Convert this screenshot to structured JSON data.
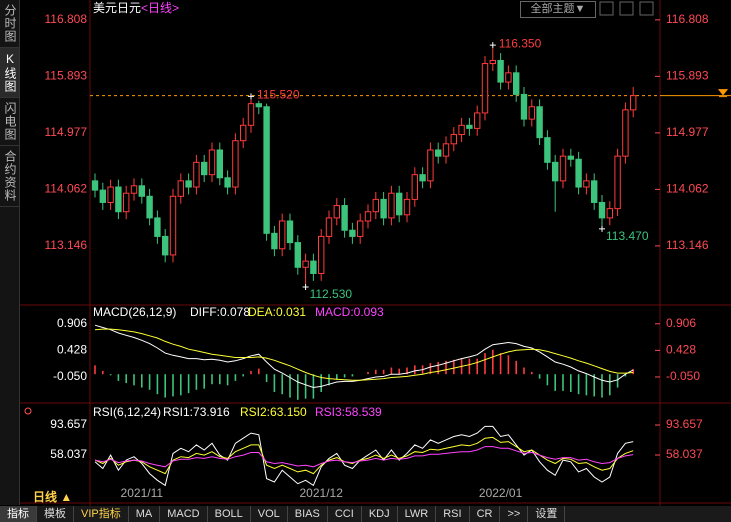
{
  "sidebar": [
    "分时图",
    "K线图",
    "闪电图",
    "合约资料"
  ],
  "theme_button": "全部主题▼",
  "period_tab": "日线 ▲",
  "toolbar": [
    "指标",
    "模板",
    "VIP指标",
    "MA",
    "MACD",
    "BOLL",
    "VOL",
    "BIAS",
    "CCI",
    "KDJ",
    "LWR",
    "RSI",
    "CR",
    ">>",
    "设置"
  ],
  "chart_data": [
    {
      "type": "candlestick",
      "title": "美元日元",
      "subtitle": "<日线>",
      "up_color": "#ff3b3b",
      "down_color": "#3cc47c",
      "last_color": "#ff9900",
      "categories": [
        null,
        null,
        null,
        null,
        null,
        null,
        "2021/11",
        null,
        null,
        null,
        null,
        null,
        null,
        null,
        null,
        null,
        null,
        null,
        null,
        null,
        null,
        null,
        null,
        null,
        null,
        null,
        null,
        null,
        null,
        "2021/12",
        null,
        null,
        null,
        null,
        null,
        null,
        null,
        null,
        null,
        null,
        null,
        null,
        null,
        null,
        null,
        null,
        null,
        null,
        null,
        null,
        null,
        null,
        "2022/01",
        null,
        null,
        null,
        null,
        null,
        null,
        null,
        null,
        null,
        null,
        null,
        null,
        null,
        null,
        null,
        null,
        null
      ],
      "open": [
        114.2,
        114.05,
        113.85,
        114.1,
        113.7,
        114.0,
        114.12,
        113.95,
        113.6,
        113.3,
        113.0,
        113.95,
        114.2,
        114.1,
        114.5,
        114.3,
        114.7,
        114.25,
        114.1,
        114.85,
        115.1,
        115.45,
        115.4,
        113.35,
        113.1,
        113.55,
        113.2,
        112.8,
        112.9,
        112.7,
        113.3,
        113.6,
        113.8,
        113.4,
        113.3,
        113.55,
        113.7,
        113.9,
        113.6,
        114.0,
        113.65,
        113.9,
        114.3,
        114.2,
        114.7,
        114.6,
        114.8,
        114.95,
        115.1,
        115.05,
        115.3,
        116.1,
        116.15,
        115.8,
        115.95,
        115.6,
        115.2,
        115.4,
        114.9,
        114.5,
        114.2,
        114.6,
        114.55,
        114.1,
        114.2,
        113.85,
        113.6,
        113.75,
        114.6,
        115.35
      ],
      "high": [
        114.32,
        114.17,
        114.22,
        114.22,
        114.12,
        114.24,
        114.24,
        114.07,
        113.72,
        113.42,
        114.07,
        114.32,
        114.32,
        114.62,
        114.62,
        114.82,
        114.82,
        114.37,
        114.97,
        115.22,
        115.52,
        115.5,
        115.45,
        113.47,
        113.67,
        113.67,
        113.32,
        113.02,
        113.02,
        113.42,
        113.72,
        113.92,
        113.92,
        113.52,
        113.67,
        113.82,
        114.02,
        114.02,
        114.12,
        114.12,
        114.02,
        114.42,
        114.42,
        114.82,
        114.82,
        114.92,
        115.07,
        115.22,
        115.22,
        115.42,
        116.22,
        116.35,
        116.27,
        116.07,
        116.07,
        115.72,
        115.52,
        115.52,
        115.02,
        114.62,
        114.72,
        114.72,
        114.67,
        114.32,
        114.32,
        113.97,
        113.87,
        114.72,
        115.47,
        115.72
      ],
      "low": [
        113.93,
        113.73,
        113.73,
        113.58,
        113.58,
        113.88,
        113.83,
        113.48,
        113.18,
        112.88,
        112.88,
        113.83,
        113.98,
        113.98,
        114.18,
        114.18,
        114.13,
        113.98,
        113.98,
        114.73,
        114.98,
        115.28,
        113.23,
        112.98,
        112.98,
        113.08,
        112.68,
        112.53,
        112.58,
        112.58,
        113.18,
        113.48,
        113.28,
        113.18,
        113.18,
        113.43,
        113.58,
        113.48,
        113.48,
        113.53,
        113.53,
        113.78,
        114.08,
        114.08,
        114.48,
        114.48,
        114.68,
        114.83,
        114.93,
        114.93,
        115.18,
        115.98,
        115.68,
        115.68,
        115.48,
        115.08,
        115.08,
        114.78,
        114.38,
        113.7,
        114.08,
        114.43,
        113.98,
        113.98,
        113.73,
        113.47,
        113.48,
        113.63,
        114.48,
        115.23
      ],
      "close": [
        114.05,
        113.85,
        114.1,
        113.7,
        114.0,
        114.12,
        113.95,
        113.6,
        113.3,
        113.0,
        113.95,
        114.2,
        114.1,
        114.5,
        114.3,
        114.7,
        114.25,
        114.1,
        114.85,
        115.1,
        115.45,
        115.4,
        113.35,
        113.1,
        113.55,
        113.2,
        112.8,
        112.9,
        112.7,
        113.3,
        113.6,
        113.8,
        113.4,
        113.3,
        113.55,
        113.7,
        113.9,
        113.6,
        114.0,
        113.65,
        113.9,
        114.3,
        114.2,
        114.7,
        114.6,
        114.8,
        114.95,
        115.1,
        115.05,
        115.3,
        116.1,
        116.15,
        115.8,
        115.95,
        115.6,
        115.2,
        115.4,
        114.9,
        114.5,
        114.2,
        114.6,
        114.55,
        114.1,
        114.2,
        113.85,
        113.6,
        113.75,
        114.6,
        115.35,
        115.58
      ],
      "high_labels": [
        null,
        null,
        null,
        null,
        null,
        null,
        null,
        null,
        null,
        null,
        null,
        null,
        null,
        null,
        null,
        null,
        null,
        null,
        null,
        null,
        "115.520",
        null,
        null,
        null,
        null,
        null,
        null,
        null,
        null,
        null,
        null,
        null,
        null,
        null,
        null,
        null,
        null,
        null,
        null,
        null,
        null,
        null,
        null,
        null,
        null,
        null,
        null,
        null,
        null,
        null,
        null,
        "116.350",
        null,
        null,
        null,
        null,
        null,
        null,
        null,
        null,
        null,
        null,
        null,
        null,
        null,
        null,
        null,
        null,
        null,
        null
      ],
      "low_labels": [
        null,
        null,
        null,
        null,
        null,
        null,
        null,
        null,
        null,
        null,
        null,
        null,
        null,
        null,
        null,
        null,
        null,
        null,
        null,
        null,
        null,
        null,
        null,
        null,
        null,
        null,
        null,
        "112.530",
        null,
        null,
        null,
        null,
        null,
        null,
        null,
        null,
        null,
        null,
        null,
        null,
        null,
        null,
        null,
        null,
        null,
        null,
        null,
        null,
        null,
        null,
        null,
        null,
        null,
        null,
        null,
        null,
        null,
        null,
        null,
        null,
        null,
        null,
        null,
        null,
        null,
        "113.470",
        null,
        null,
        null,
        null
      ],
      "ylim": [
        112.27,
        117.0
      ],
      "yticks": [
        116.808,
        115.893,
        114.977,
        114.062,
        113.146
      ]
    },
    {
      "type": "macd",
      "title": "MACD(26,12,9)",
      "ylim": [
        -0.5,
        1.19
      ],
      "yticks": [
        0.906,
        0.428,
        {
          "value": -0.05,
          "label": "-0.050"
        }
      ],
      "series": [
        {
          "name": "DIFF:",
          "color": "#ffffff",
          "kind": "line",
          "values": [
            0.88,
            0.84,
            0.8,
            0.74,
            0.7,
            0.66,
            0.61,
            0.55,
            0.47,
            0.38,
            0.34,
            0.31,
            0.28,
            0.28,
            0.26,
            0.27,
            0.25,
            0.22,
            0.24,
            0.28,
            0.33,
            0.36,
            0.22,
            0.09,
            0.02,
            -0.06,
            -0.14,
            -0.19,
            -0.24,
            -0.22,
            -0.18,
            -0.14,
            -0.13,
            -0.13,
            -0.11,
            -0.08,
            -0.05,
            -0.04,
            0.0,
            0.0,
            0.02,
            0.06,
            0.08,
            0.13,
            0.16,
            0.2,
            0.24,
            0.28,
            0.31,
            0.35,
            0.45,
            0.53,
            0.55,
            0.57,
            0.55,
            0.5,
            0.47,
            0.4,
            0.31,
            0.22,
            0.18,
            0.13,
            0.06,
            0.01,
            -0.05,
            -0.11,
            -0.14,
            -0.1,
            0.0,
            0.078
          ]
        },
        {
          "name": "DEA:",
          "color": "#ffff33",
          "kind": "line",
          "values": [
            0.8,
            0.81,
            0.81,
            0.8,
            0.78,
            0.76,
            0.73,
            0.69,
            0.65,
            0.59,
            0.54,
            0.5,
            0.45,
            0.42,
            0.39,
            0.36,
            0.34,
            0.32,
            0.3,
            0.3,
            0.3,
            0.31,
            0.29,
            0.25,
            0.2,
            0.15,
            0.09,
            0.03,
            -0.02,
            -0.06,
            -0.08,
            -0.09,
            -0.1,
            -0.11,
            -0.11,
            -0.1,
            -0.09,
            -0.08,
            -0.06,
            -0.05,
            -0.04,
            -0.02,
            0.0,
            0.03,
            0.05,
            0.08,
            0.11,
            0.14,
            0.17,
            0.21,
            0.26,
            0.31,
            0.36,
            0.4,
            0.43,
            0.44,
            0.45,
            0.44,
            0.41,
            0.37,
            0.33,
            0.29,
            0.24,
            0.2,
            0.15,
            0.1,
            0.05,
            0.02,
            0.02,
            0.031
          ]
        },
        {
          "name": "MACD:",
          "color": "#ff44ff",
          "up_color": "#ff3b3b",
          "down_color": "#3cc47c",
          "kind": "bar",
          "values": [
            0.16,
            0.06,
            -0.02,
            -0.12,
            -0.16,
            -0.2,
            -0.24,
            -0.28,
            -0.36,
            -0.42,
            -0.4,
            -0.38,
            -0.34,
            -0.28,
            -0.26,
            -0.18,
            -0.18,
            -0.2,
            -0.12,
            -0.04,
            0.06,
            0.1,
            -0.14,
            -0.32,
            -0.36,
            -0.42,
            -0.46,
            -0.44,
            -0.44,
            -0.32,
            -0.2,
            -0.1,
            -0.06,
            -0.04,
            0.0,
            0.04,
            0.08,
            0.08,
            0.12,
            0.1,
            0.12,
            0.16,
            0.16,
            0.2,
            0.22,
            0.24,
            0.26,
            0.28,
            0.28,
            0.28,
            0.38,
            0.44,
            0.38,
            0.34,
            0.24,
            0.12,
            0.04,
            -0.08,
            -0.2,
            -0.3,
            -0.3,
            -0.32,
            -0.36,
            -0.38,
            -0.4,
            -0.42,
            -0.38,
            -0.24,
            -0.04,
            0.093
          ]
        }
      ]
    },
    {
      "type": "line",
      "title": "RSI(6,12,24)",
      "ylim": [
        18.9,
        117.4
      ],
      "yticks": [
        93.657,
        58.037
      ],
      "series": [
        {
          "name": "RSI1:",
          "color": "#ffffff",
          "values": [
            50,
            42,
            58,
            40,
            52,
            56,
            48,
            36,
            28,
            22,
            60,
            66,
            62,
            70,
            64,
            72,
            58,
            52,
            72,
            78,
            84,
            82,
            30,
            26,
            40,
            32,
            24,
            28,
            22,
            44,
            54,
            60,
            46,
            42,
            52,
            58,
            64,
            52,
            64,
            52,
            60,
            70,
            66,
            76,
            72,
            76,
            80,
            82,
            80,
            84,
            92,
            92,
            80,
            82,
            70,
            58,
            64,
            50,
            40,
            34,
            52,
            50,
            38,
            42,
            32,
            26,
            32,
            60,
            72,
            73.916
          ]
        },
        {
          "name": "RSI2:",
          "color": "#ffff33",
          "values": [
            52,
            48,
            54,
            46,
            50,
            52,
            50,
            44,
            40,
            36,
            52,
            56,
            55,
            60,
            58,
            62,
            56,
            54,
            62,
            66,
            70,
            70,
            46,
            42,
            46,
            42,
            38,
            40,
            36,
            46,
            52,
            55,
            50,
            48,
            52,
            54,
            58,
            54,
            58,
            54,
            57,
            62,
            61,
            65,
            64,
            66,
            68,
            70,
            69,
            72,
            78,
            79,
            73,
            74,
            68,
            62,
            64,
            58,
            52,
            48,
            54,
            53,
            48,
            49,
            44,
            40,
            42,
            54,
            60,
            63.15
          ],
          "value_labels": [
            null,
            null,
            null,
            null,
            null,
            null,
            null,
            null,
            null,
            null,
            null,
            null,
            null,
            null,
            null,
            null,
            null,
            null,
            null,
            null,
            null,
            null,
            null,
            null,
            null,
            null,
            null,
            null,
            null,
            null,
            null,
            null,
            null,
            null,
            null,
            null,
            null,
            null,
            null,
            null,
            null,
            null,
            null,
            null,
            null,
            null,
            null,
            null,
            null,
            null,
            null,
            null,
            null,
            null,
            null,
            null,
            null,
            null,
            null,
            null,
            null,
            null,
            null,
            null,
            null,
            null,
            null,
            null,
            null,
            "63.150"
          ]
        },
        {
          "name": "RSI3:",
          "color": "#ff44ff",
          "values": [
            52,
            50,
            53,
            49,
            51,
            52,
            51,
            48,
            46,
            44,
            51,
            53,
            53,
            55,
            54,
            56,
            54,
            53,
            56,
            58,
            61,
            61,
            50,
            48,
            49,
            47,
            45,
            46,
            44,
            48,
            51,
            52,
            50,
            49,
            51,
            52,
            54,
            52,
            54,
            53,
            54,
            57,
            57,
            59,
            59,
            60,
            61,
            62,
            62,
            64,
            68,
            68,
            66,
            66,
            63,
            60,
            61,
            58,
            55,
            53,
            55,
            55,
            52,
            53,
            50,
            48,
            49,
            54,
            57,
            58.539
          ]
        }
      ]
    }
  ]
}
